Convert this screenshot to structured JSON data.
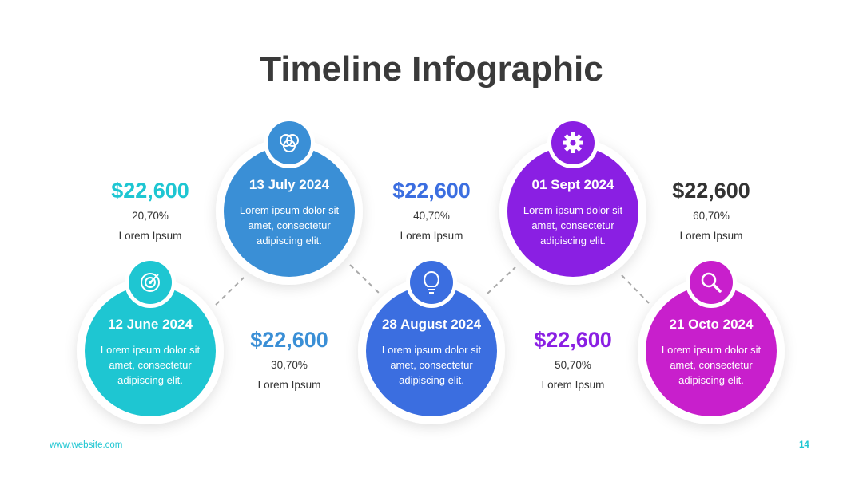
{
  "title": "Timeline Infographic",
  "events": [
    {
      "date": "12 June 2024",
      "text": "Lorem ipsum dolor sit amet, consectetur adipiscing elit.",
      "color": "#1ec6d2"
    },
    {
      "date": "13 July 2024",
      "text": "Lorem ipsum dolor sit amet, consectetur adipiscing elit.",
      "color": "#3a8fd6"
    },
    {
      "date": "28 August 2024",
      "text": "Lorem ipsum dolor sit amet, consectetur adipiscing elit.",
      "color": "#3b6ee0"
    },
    {
      "date": "01 Sept 2024",
      "text": "Lorem ipsum dolor sit amet, consectetur adipiscing elit.",
      "color": "#8a1fe3"
    },
    {
      "date": "21 Octo 2024",
      "text": "Lorem ipsum dolor sit amet, consectetur adipiscing elit.",
      "color": "#c81fcc"
    }
  ],
  "stats": [
    {
      "amount": "$22,600",
      "percent": "20,70%",
      "label": "Lorem Ipsum",
      "color": "#1ec6d2"
    },
    {
      "amount": "$22,600",
      "percent": "30,70%",
      "label": "Lorem Ipsum",
      "color": "#3a8fd6"
    },
    {
      "amount": "$22,600",
      "percent": "40,70%",
      "label": "Lorem Ipsum",
      "color": "#3b6ee0"
    },
    {
      "amount": "$22,600",
      "percent": "50,70%",
      "label": "Lorem Ipsum",
      "color": "#8a1fe3"
    },
    {
      "amount": "$22,600",
      "percent": "60,70%",
      "label": "Lorem Ipsum",
      "color": "#333333"
    }
  ],
  "footer": {
    "website": "www.website.com",
    "page": "14"
  }
}
